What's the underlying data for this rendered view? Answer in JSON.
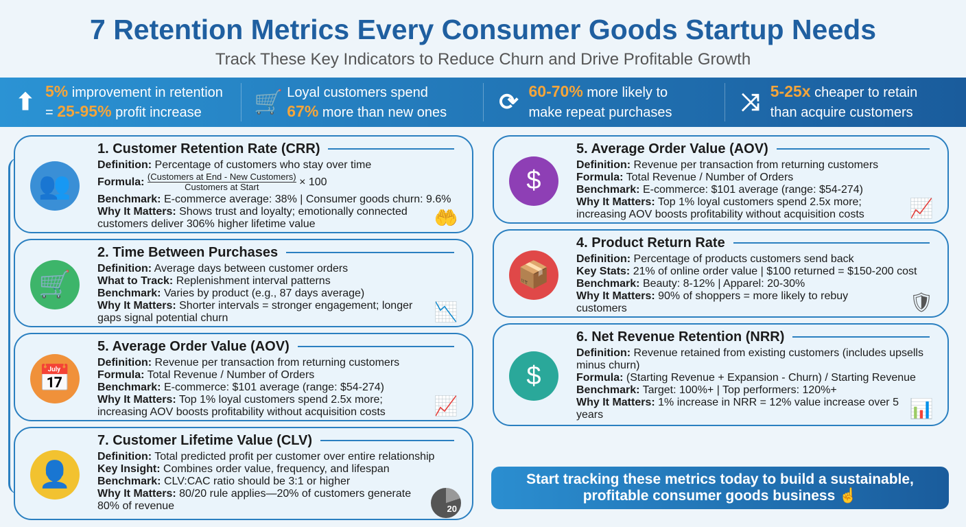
{
  "title": "7 Retention Metrics Every Consumer Goods Startup Needs",
  "subtitle": "Track These Key Indicators to Reduce Churn and Drive Profitable Growth",
  "banner": [
    {
      "icon": "arrow-up-icon",
      "l1_hl": "5%",
      "l1": " improvement in retention",
      "l2_pre": "= ",
      "l2_hl": "25-95%",
      "l2": " profit increase"
    },
    {
      "icon": "cart-icon",
      "l1_hl": "",
      "l1": "Loyal customers spend",
      "l2_pre": "",
      "l2_hl": "67%",
      "l2": " more than new ones"
    },
    {
      "icon": "refresh-icon",
      "l1_hl": "60-70%",
      "l1": " more likely to",
      "l2_pre": "",
      "l2_hl": "",
      "l2": "make repeat purchases"
    },
    {
      "icon": "shuffle-icon",
      "l1_hl": "5-25x",
      "l1": " cheaper to retain",
      "l2_pre": "",
      "l2_hl": "",
      "l2": "than acquire customers"
    }
  ],
  "left": [
    {
      "title": "1. Customer Retention Rate (CRR)",
      "rows": [
        [
          "Definition:",
          "Percentage of customers who stay over time"
        ],
        [
          "Formula:",
          ""
        ],
        [
          "Benchmark:",
          "E-commerce average: 38% | Consumer goods churn: 9.6%"
        ],
        [
          "Why It Matters:",
          "Shows trust and loyalty; emotionally connected customers deliver 306% higher lifetime value"
        ]
      ],
      "formula": {
        "num": "(Customers at End - New Customers)",
        "den": "Customers at Start",
        "mult": "× 100"
      }
    },
    {
      "title": "2. Time Between Purchases",
      "rows": [
        [
          "Definition:",
          "Average days between customer orders"
        ],
        [
          "What to Track:",
          "Replenishment interval patterns"
        ],
        [
          "Benchmark:",
          "Varies by product (e.g., 87 days average)"
        ],
        [
          "Why It Matters:",
          "Shorter intervals = stronger engagement; longer gaps signal potential churn"
        ]
      ]
    },
    {
      "title": "5. Average Order Value (AOV)",
      "rows": [
        [
          "Definition:",
          "Revenue per transaction from returning customers"
        ],
        [
          "Formula:",
          "Total Revenue / Number of Orders"
        ],
        [
          "Benchmark:",
          "E-commerce: $101 average (range: $54-274)"
        ],
        [
          "Why It Matters:",
          "Top 1% loyal customers spend 2.5x more; increasing AOV boosts profitability without acquisition costs"
        ]
      ]
    },
    {
      "title": "7. Customer Lifetime Value (CLV)",
      "rows": [
        [
          "Definition:",
          "Total predicted profit per customer over entire relationship"
        ],
        [
          "Key Insight:",
          "Combines order value, frequency, and lifespan"
        ],
        [
          "Benchmark:",
          "CLV:CAC ratio should be 3:1 or higher"
        ],
        [
          "Why It Matters:",
          "80/20 rule applies—20% of customers generate 80% of revenue"
        ]
      ],
      "pie_label": "20"
    }
  ],
  "right": [
    {
      "title": "5. Average Order Value (AOV)",
      "rows": [
        [
          "Definition:",
          "Revenue per transaction from returning customers"
        ],
        [
          "Formula:",
          "Total Revenue / Number of Orders"
        ],
        [
          "Benchmark:",
          "E-commerce: $101 average (range: $54-274)"
        ],
        [
          "Why It Matters:",
          "Top 1% loyal customers spend 2.5x more; increasing AOV boosts profitability without acquisition costs"
        ]
      ]
    },
    {
      "title": "4. Product Return Rate",
      "rows": [
        [
          "Definition:",
          "Percentage of products customers send back"
        ],
        [
          "Key Stats:",
          "21% of online order value | $100 returned = $150-200 cost"
        ],
        [
          "Benchmark:",
          "Beauty: 8-12% | Apparel: 20-30%"
        ],
        [
          "Why It Matters:",
          "90% of shoppers = more likely to rebuy customers"
        ]
      ]
    },
    {
      "title": "6. Net Revenue Retention (NRR)",
      "rows": [
        [
          "Definition:",
          "Revenue retained from existing customers (includes upsells minus churn)"
        ],
        [
          "Formula:",
          "(Starting Revenue + Expansion - Churn) / Starting Revenue"
        ],
        [
          "Benchmark:",
          "Target: 100%+ | Top performers: 120%+"
        ],
        [
          "Why It Matters:",
          "1% increase in NRR = 12% value increase over 5 years"
        ]
      ]
    }
  ],
  "cta": "Start tracking these metrics today to build a sustainable, profitable consumer goods business",
  "colors": {
    "title": "#1f5fa0",
    "accent": "#f5a53a",
    "border": "#2a7fc0"
  }
}
